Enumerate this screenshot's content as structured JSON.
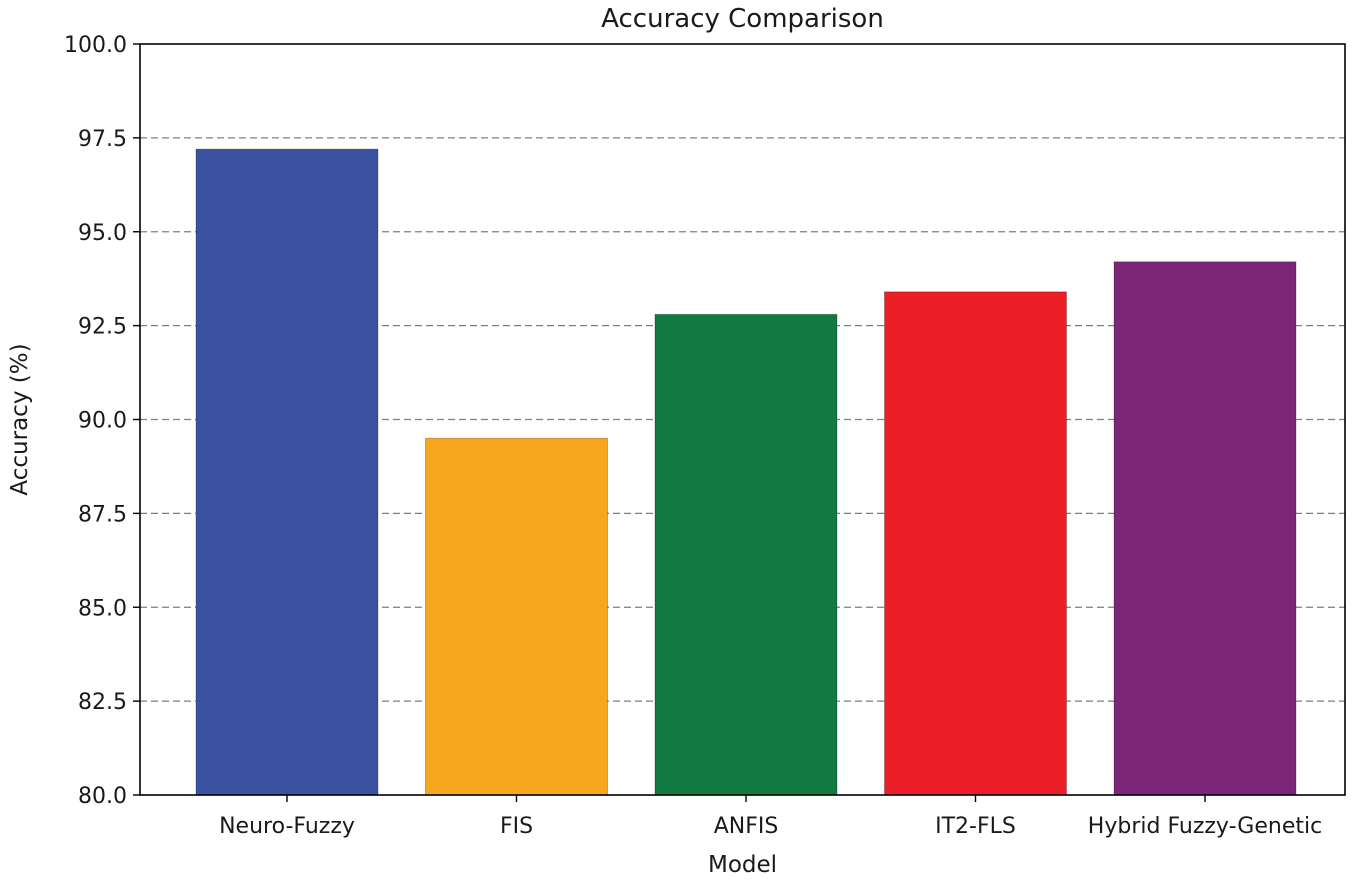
{
  "chart_data": {
    "type": "bar",
    "title": "Accuracy Comparison",
    "xlabel": "Model",
    "ylabel": "Accuracy (%)",
    "categories": [
      "Neuro-Fuzzy",
      "FIS",
      "ANFIS",
      "IT2-FLS",
      "Hybrid Fuzzy-Genetic"
    ],
    "values": [
      97.2,
      89.5,
      92.8,
      93.4,
      94.2
    ],
    "colors": [
      "#3a52a0",
      "#f7a71e",
      "#117a40",
      "#eb1f28",
      "#7b2677"
    ],
    "ylim": [
      80.0,
      100.0
    ],
    "yticks": [
      "80.0",
      "82.5",
      "85.0",
      "87.5",
      "90.0",
      "92.5",
      "95.0",
      "97.5",
      "100.0"
    ],
    "grid": "y-dashed",
    "grid_color": "#555555"
  }
}
